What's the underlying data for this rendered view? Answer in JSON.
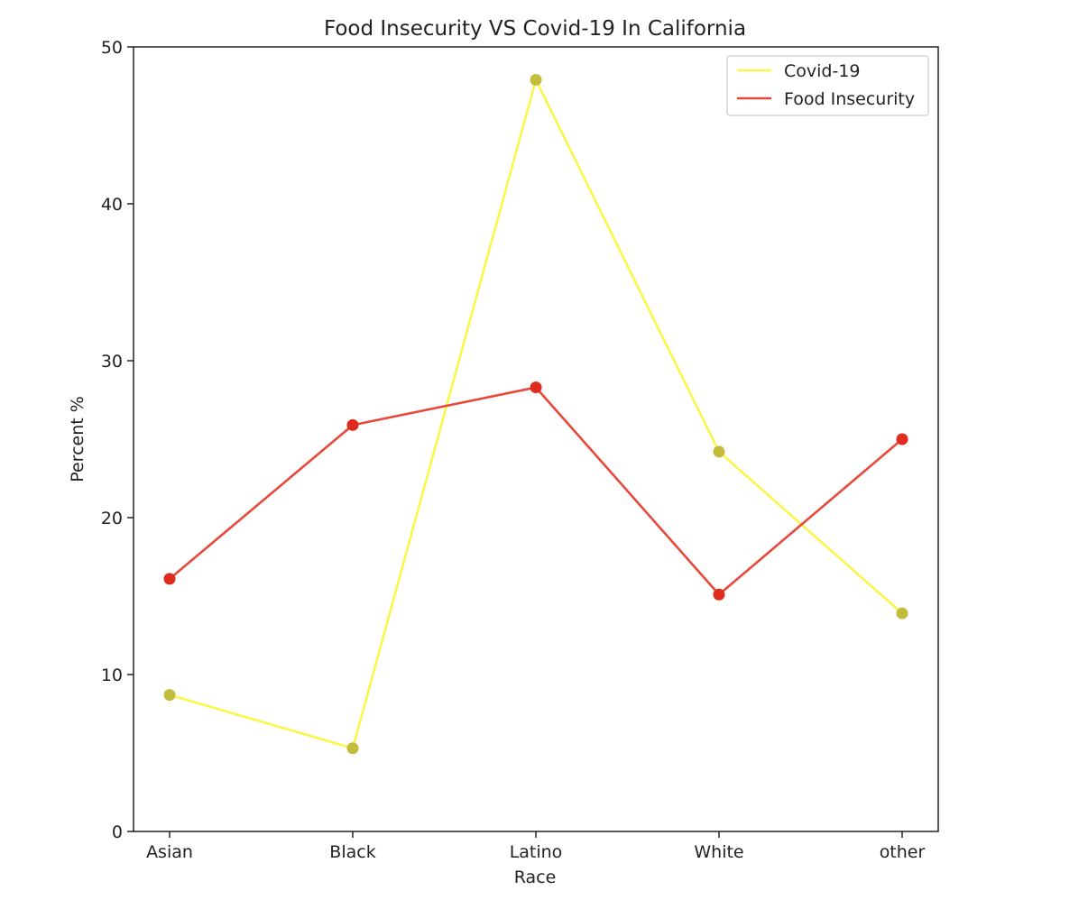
{
  "chart_data": {
    "type": "line",
    "title": "Food Insecurity VS Covid-19 In California",
    "xlabel": "Race",
    "ylabel": "Percent %",
    "categories": [
      "Asian",
      "Black",
      "Latino",
      "White",
      "other"
    ],
    "ylim": [
      0,
      50
    ],
    "yticks": [
      0,
      10,
      20,
      30,
      40,
      50
    ],
    "grid": false,
    "legend_position": "top-right",
    "series": [
      {
        "name": "Covid-19",
        "values": [
          8.7,
          5.3,
          47.9,
          24.2,
          13.9
        ],
        "line_color": "#fbf64a",
        "marker_color": "#c3bc3c"
      },
      {
        "name": "Food Insecurity",
        "values": [
          16.1,
          25.9,
          28.3,
          15.1,
          25.0
        ],
        "line_color": "#e8483a",
        "marker_color": "#e02b1f"
      }
    ]
  }
}
